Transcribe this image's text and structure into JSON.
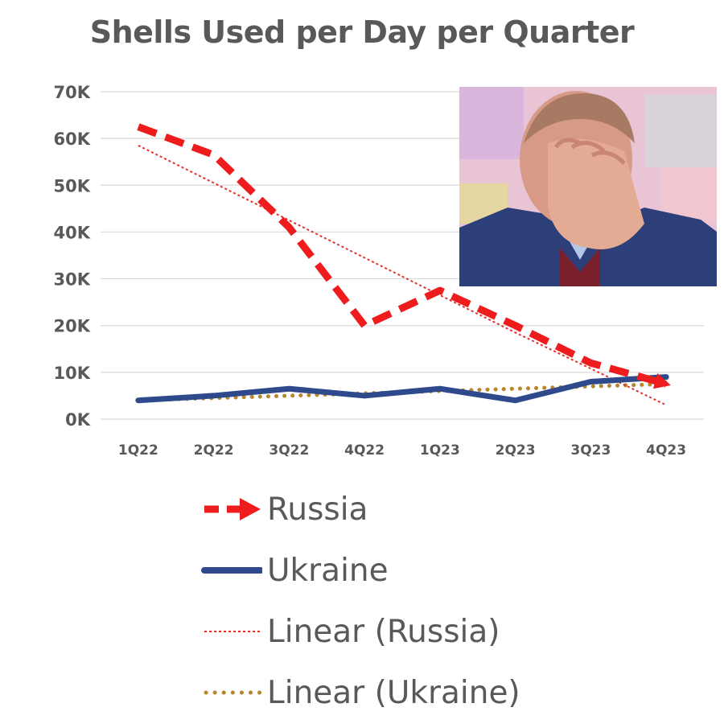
{
  "chart_data": {
    "type": "line",
    "title": "Shells Used per Day per Quarter",
    "categories": [
      "1Q22",
      "2Q22",
      "3Q22",
      "4Q22",
      "1Q23",
      "2Q23",
      "3Q23",
      "4Q23"
    ],
    "y_ticks": [
      "0K",
      "10K",
      "20K",
      "30K",
      "40K",
      "50K",
      "60K",
      "70K"
    ],
    "ylim": [
      0,
      70000
    ],
    "grid": true,
    "legend_position": "bottom",
    "series": [
      {
        "name": "Russia",
        "values": [
          62500,
          56500,
          41000,
          20000,
          27500,
          20000,
          12000,
          7500
        ],
        "color": "#ee1c1c",
        "style": "dashed"
      },
      {
        "name": "Ukraine",
        "values": [
          4000,
          5000,
          6500,
          5000,
          6500,
          4000,
          8000,
          9000
        ],
        "color": "#2f4a8c",
        "style": "solid"
      },
      {
        "name": "Linear (Russia)",
        "values": [
          58500,
          50500,
          42500,
          34500,
          26500,
          18500,
          10800,
          3000
        ],
        "color": "#e03030",
        "style": "dotted"
      },
      {
        "name": "Linear (Ukraine)",
        "values": [
          4000,
          4500,
          5000,
          5500,
          6000,
          6500,
          7000,
          7500
        ],
        "color": "#b8862a",
        "style": "dotted"
      }
    ]
  }
}
